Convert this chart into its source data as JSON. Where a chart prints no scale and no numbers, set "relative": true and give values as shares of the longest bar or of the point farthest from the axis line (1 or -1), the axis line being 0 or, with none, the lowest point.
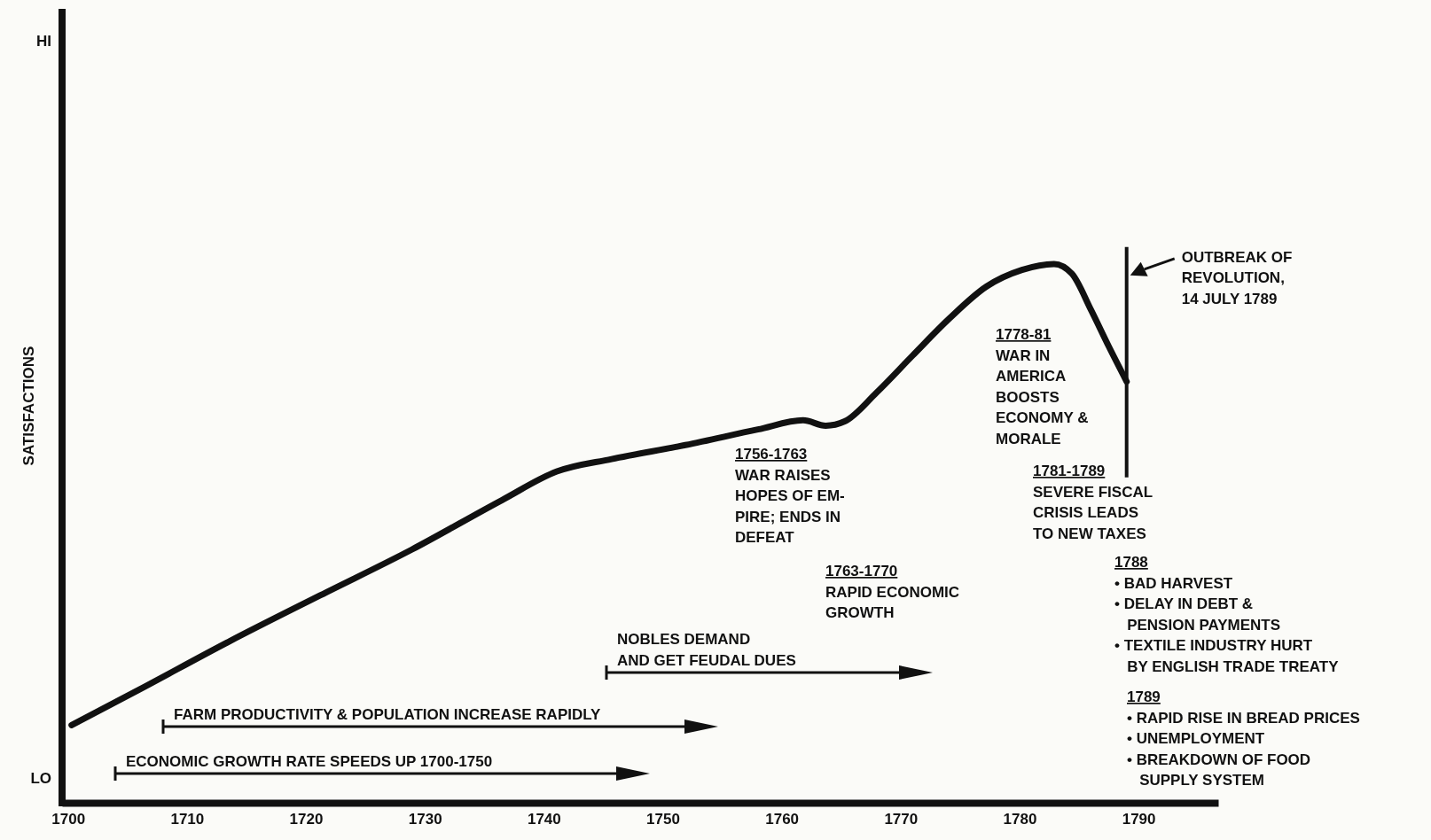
{
  "chart_data": {
    "type": "line",
    "relative": true,
    "ylabel": "SATISFACTIONS",
    "xlim": [
      1699.5,
      1796.7
    ],
    "xticks": [
      1700,
      1710,
      1720,
      1730,
      1740,
      1750,
      1760,
      1770,
      1780,
      1790
    ],
    "series": [
      {
        "color": "#111111",
        "x": [
          1700.3,
          1705.9,
          1713.6,
          1721.2,
          1728.9,
          1736.5,
          1741.1,
          1745.7,
          1751.9,
          1758,
          1761.8,
          1763.7,
          1765.3,
          1768,
          1771,
          1774.1,
          1777.2,
          1780.2,
          1782.9,
          1784.4,
          1786,
          1787.5,
          1789
        ],
        "values": [
          0.144,
          0.209,
          0.3,
          0.385,
          0.47,
          0.562,
          0.615,
          0.638,
          0.664,
          0.693,
          0.71,
          0.7,
          0.708,
          0.762,
          0.83,
          0.899,
          0.958,
          0.989,
          1,
          0.982,
          0.915,
          0.847,
          0.782
        ]
      }
    ],
    "ref_lines": [
      {
        "axis": "x",
        "value": 1789,
        "label": "OUTBREAK OF\nREVOLUTION,\n14 JULY 1789"
      }
    ],
    "annotations": [
      "HI",
      "LO",
      "ECONOMIC GROWTH RATE SPEEDS UP 1700-1750",
      "FARM PRODUCTIVITY & POPULATION INCREASE RAPIDLY",
      "NOBLES DEMAND\nAND GET FEUDAL DUES",
      "1756-1763\nWAR RAISES\nHOPES OF EM-\nPIRE; ENDS IN\nDEFEAT",
      "1763-1770\nRAPID ECONOMIC\nGROWTH",
      "1778-81\nWAR IN\nAMERICA\nBOOSTS\nECONOMY &\nMORALE",
      "1781-1789\nSEVERE FISCAL\nCRISIS LEADS\nTO NEW TAXES",
      "1788\n• BAD HARVEST\n• DELAY IN DEBT &\n   PENSION PAYMENTS\n• TEXTILE INDUSTRY HURT\n   BY ENGLISH TRADE TREATY",
      "1789\n• RAPID RISE IN BREAD PRICES\n• UNEMPLOYMENT\n• BREAKDOWN OF FOOD\n   SUPPLY SYSTEM"
    ]
  }
}
